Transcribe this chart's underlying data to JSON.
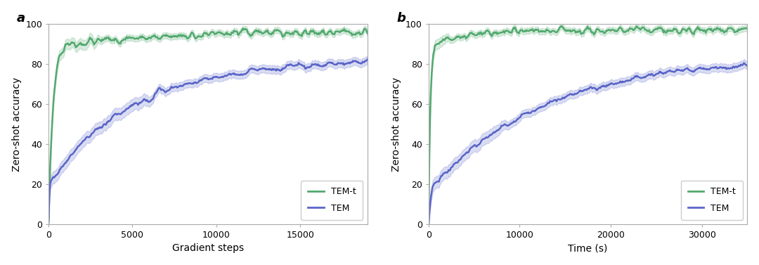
{
  "panel_a": {
    "label": "a",
    "xlabel": "Gradient steps",
    "ylabel": "Zero-shot accuracy",
    "xlim": [
      0,
      19000
    ],
    "ylim": [
      0,
      100
    ],
    "xticks": [
      0,
      5000,
      10000,
      15000
    ],
    "yticks": [
      0,
      20,
      40,
      60,
      80,
      100
    ]
  },
  "panel_b": {
    "label": "b",
    "xlabel": "Time (s)",
    "ylabel": "Zero-shot accuracy",
    "xlim": [
      0,
      35000
    ],
    "ylim": [
      0,
      100
    ],
    "xticks": [
      0,
      10000,
      20000,
      30000
    ],
    "yticks": [
      0,
      20,
      40,
      60,
      80,
      100
    ]
  },
  "green_color": "#52a96e",
  "blue_color": "#5a65c8",
  "green_fill_alpha": 0.22,
  "blue_fill_alpha": 0.22,
  "legend_tem_t": "TEM-t",
  "legend_tem": "TEM",
  "background_color": "#ffffff",
  "label_fontsize": 10,
  "tick_fontsize": 9,
  "panel_label_fontsize": 13,
  "legend_fontsize": 9,
  "line_width": 1.8,
  "spine_color": "#aaaaaa"
}
